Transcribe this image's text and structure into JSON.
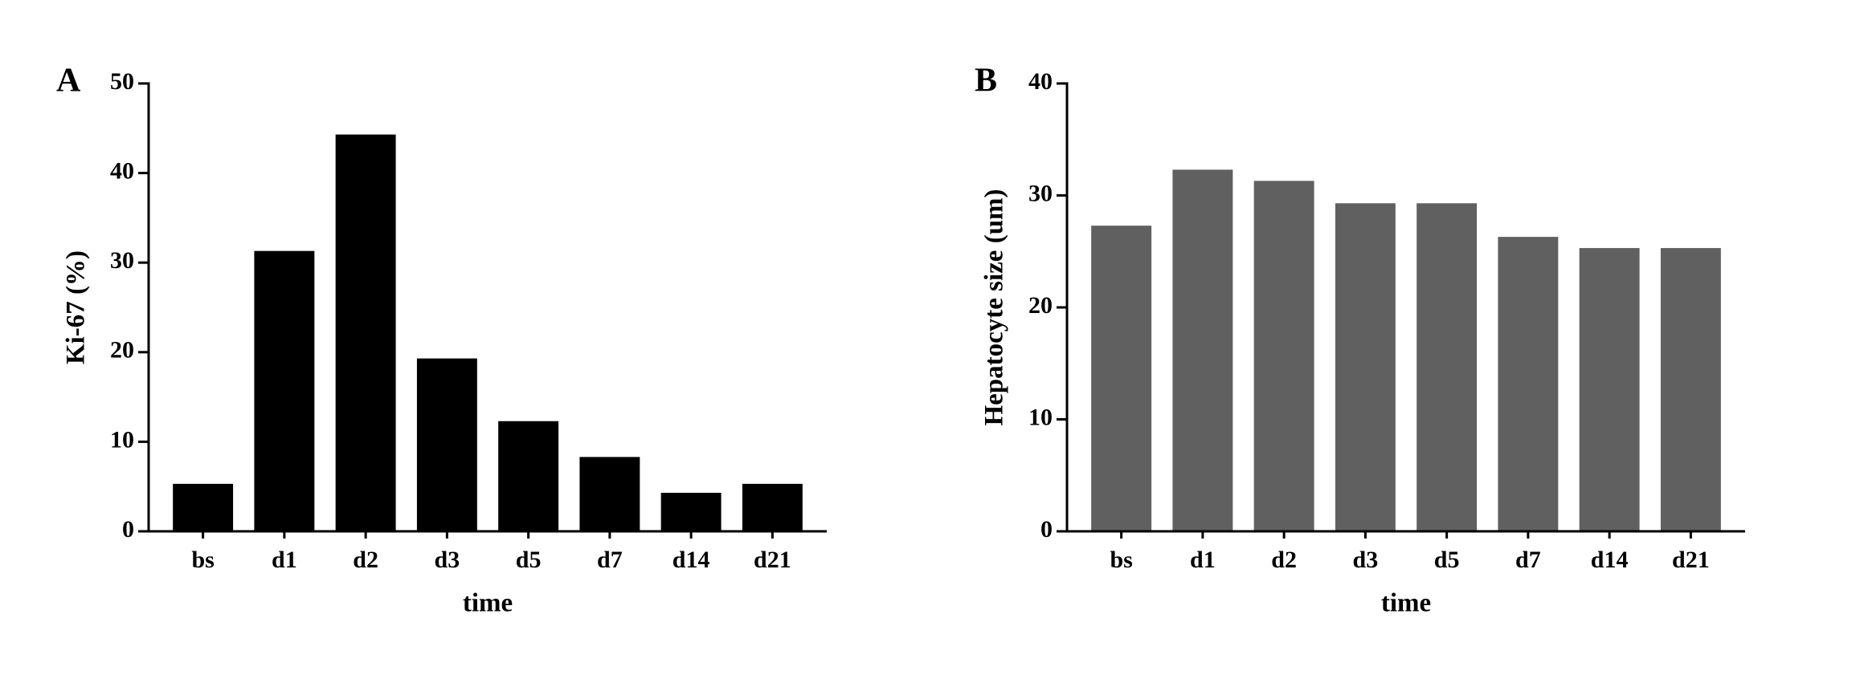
{
  "chart_data": [
    {
      "type": "bar",
      "panel_label": "A",
      "ylabel": "Ki-67 (%)",
      "xlabel": "time",
      "categories": [
        "bs",
        "d1",
        "d2",
        "d3",
        "d5",
        "d7",
        "d14",
        "d21"
      ],
      "values": [
        5.3,
        31.3,
        44.3,
        19.3,
        12.3,
        8.3,
        4.3,
        5.3
      ],
      "color": "#000000",
      "ylim": [
        0,
        50
      ],
      "yticks": [
        0,
        10,
        20,
        30,
        40,
        50
      ]
    },
    {
      "type": "bar",
      "panel_label": "B",
      "ylabel": "Hepatocyte size (um)",
      "xlabel": "time",
      "categories": [
        "bs",
        "d1",
        "d2",
        "d3",
        "d5",
        "d7",
        "d14",
        "d21"
      ],
      "values": [
        27.3,
        32.3,
        31.3,
        29.3,
        29.3,
        26.3,
        25.3,
        25.3
      ],
      "color": "#606060",
      "ylim": [
        0,
        40
      ],
      "yticks": [
        0,
        10,
        20,
        30,
        40
      ]
    }
  ]
}
